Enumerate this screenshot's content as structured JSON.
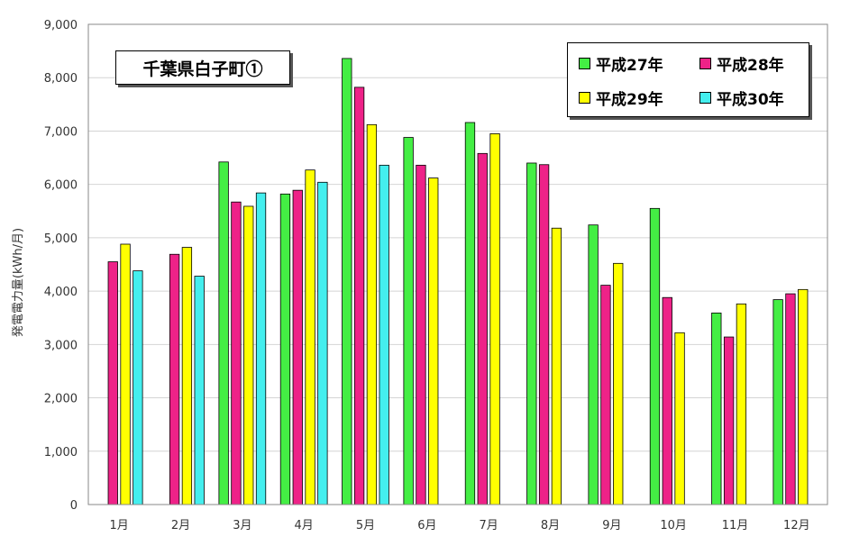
{
  "chart_data": {
    "type": "bar",
    "title": "千葉県白子町①",
    "ylabel": "発電電力量(kWh/月)",
    "xlabel": "",
    "ylim": [
      0,
      9000
    ],
    "yticks": [
      "0",
      "1,000",
      "2,000",
      "3,000",
      "4,000",
      "5,000",
      "6,000",
      "7,000",
      "8,000",
      "9,000"
    ],
    "categories": [
      "1月",
      "2月",
      "3月",
      "4月",
      "5月",
      "6月",
      "7月",
      "8月",
      "9月",
      "10月",
      "11月",
      "12月"
    ],
    "grid": true,
    "legend_position": "top-right",
    "series": [
      {
        "name": "平成27年",
        "color": "#44ee44",
        "values": [
          null,
          null,
          6420,
          5820,
          8360,
          6880,
          7160,
          6400,
          5240,
          5550,
          3590,
          3840
        ]
      },
      {
        "name": "平成28年",
        "color": "#ee2288",
        "values": [
          4550,
          4690,
          5670,
          5890,
          7820,
          6360,
          6580,
          6370,
          4110,
          3880,
          3140,
          3950
        ]
      },
      {
        "name": "平成29年",
        "color": "#ffff00",
        "values": [
          4880,
          4820,
          5590,
          6270,
          7120,
          6120,
          6950,
          5180,
          4520,
          3220,
          3760,
          4030
        ]
      },
      {
        "name": "平成30年",
        "color": "#44eeee",
        "values": [
          4380,
          4280,
          5840,
          6040,
          6360,
          null,
          null,
          null,
          null,
          null,
          null,
          null
        ]
      }
    ]
  }
}
